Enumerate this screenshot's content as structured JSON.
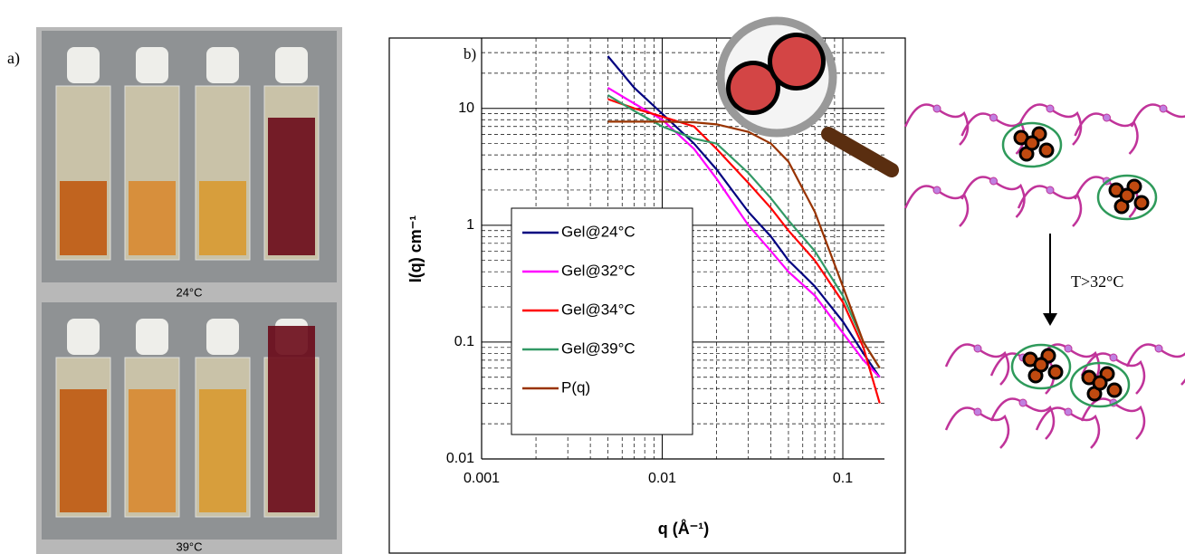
{
  "figure": {
    "panel_a": "a)",
    "photo_labels": [
      "24°C",
      "39°C"
    ],
    "schematic_label": "T>32°C"
  },
  "chart_data": {
    "type": "line",
    "panel_label": "b)",
    "x_label": "q (Å⁻¹)",
    "y_label": "I(q) cm⁻¹",
    "x_scale": "log",
    "y_scale": "log",
    "grid": true,
    "minor_grid": true,
    "xlim": [
      0.001,
      0.17
    ],
    "ylim": [
      0.01,
      40
    ],
    "xticks": [
      0.001,
      0.01,
      0.1
    ],
    "yticks": [
      0.01,
      0.1,
      1,
      10
    ],
    "legend": "left",
    "x": [
      0.005,
      0.007,
      0.01,
      0.015,
      0.02,
      0.03,
      0.04,
      0.05,
      0.07,
      0.1,
      0.13,
      0.16
    ],
    "series": [
      {
        "name": "Gel@24°C",
        "color": "#000080",
        "values": [
          28,
          15,
          9,
          5,
          3,
          1.3,
          0.8,
          0.5,
          0.3,
          0.15,
          0.08,
          0.05
        ]
      },
      {
        "name": "Gel@32°C",
        "color": "#ff00ff",
        "values": [
          15,
          11,
          8,
          4.5,
          2.5,
          1.0,
          0.6,
          0.4,
          0.25,
          0.12,
          0.07,
          0.05
        ]
      },
      {
        "name": "Gel@34°C",
        "color": "#ff0000",
        "values": [
          12,
          10,
          8.5,
          7,
          4.5,
          2.3,
          1.4,
          0.9,
          0.5,
          0.22,
          0.09,
          0.03
        ]
      },
      {
        "name": "Gel@39°C",
        "color": "#339966",
        "values": [
          13,
          9.5,
          7,
          5.5,
          5,
          2.8,
          1.7,
          1.1,
          0.6,
          0.25,
          0.1,
          0.06
        ]
      },
      {
        "name": "P(q)",
        "color": "#993300",
        "values": [
          7.7,
          7.7,
          7.7,
          7.6,
          7.3,
          6.3,
          5,
          3.5,
          1.3,
          0.3,
          0.1,
          0.06
        ]
      }
    ]
  }
}
